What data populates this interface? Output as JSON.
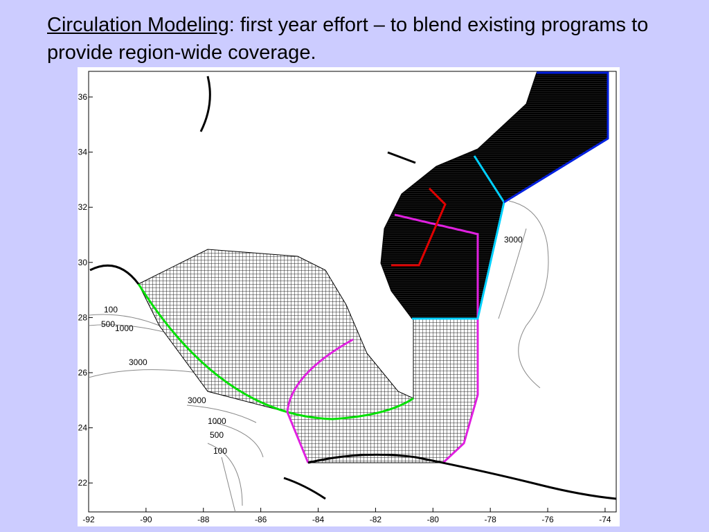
{
  "slide": {
    "title_bold": "Circulation Modeling",
    "title_rest": ": first year effort – to blend existing programs to provide region-wide coverage."
  },
  "map": {
    "yticks": [
      36,
      34,
      32,
      30,
      28,
      26,
      24,
      22
    ],
    "xticks": [
      -92,
      -90,
      -88,
      -86,
      -84,
      -82,
      -80,
      -78,
      -76,
      -74
    ],
    "contour_labels": [
      "100",
      "500",
      "1000",
      "3000",
      "3000",
      "1000",
      "500",
      "100",
      "3000"
    ]
  }
}
